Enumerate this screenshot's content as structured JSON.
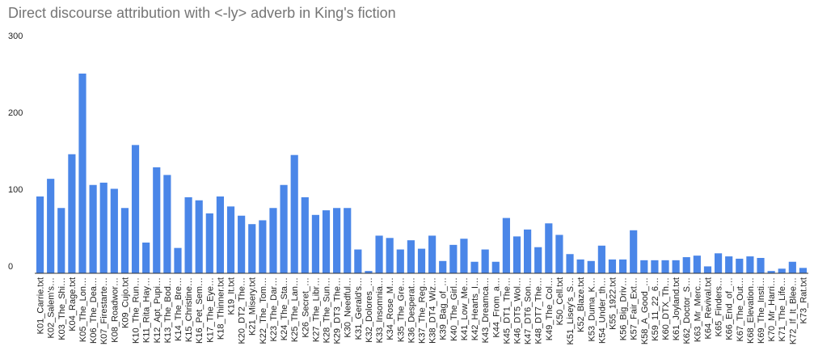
{
  "chart_data": {
    "type": "bar",
    "title": "Direct discourse attribution with <-ly> adverb in King's fiction",
    "categories": [
      "K01_Carrie.txt",
      "K02_Salem's…",
      "K03_The_Shi…",
      "K04_Rage.txt",
      "K05_The_Lon…",
      "K06_The_Dea…",
      "K07_Firestarte…",
      "K08_Roadwor…",
      "K09_Cujo.txt",
      "K10_The_Run…",
      "K11_Rita_Hay…",
      "K12_Apt_Pupi…",
      "K13_The_Bod…",
      "K14_The_Bre…",
      "K15_Christine…",
      "K16_Pet_Sem…",
      "K17_The_Eye…",
      "K18_Thinner.txt",
      "K19_It.txt",
      "K20_DT2_The…",
      "K21_Misery.txt",
      "K22_The_Tom…",
      "K23_The_Dar…",
      "K24_The_Sta…",
      "K25_The_Lan…",
      "K26_Secret_…",
      "K27_The_Libr…",
      "K28_The_Sun…",
      "K29_DT3_The…",
      "K30_Needful…",
      "K31_Gerald's…",
      "K32_Dolores_…",
      "K33_Insomnia…",
      "K34_Rose_M…",
      "K35_The_Gre…",
      "K36_Desperat…",
      "K37_The_Reg…",
      "K38_DT4_Wiz…",
      "K39_Bag_of_…",
      "K40_The_Girl…",
      "K41_Low_Me…",
      "K42_Hearts_I…",
      "K43_Dreamca…",
      "K44_From_a…",
      "K45_DT1_The…",
      "K46_DT5_Wol…",
      "K47_DT6_Son…",
      "K48_DT7_The…",
      "K49_The_Col…",
      "K50_Cell.txt",
      "K51_Lisey's_S…",
      "K52_Blaze.txt",
      "K53_Duma_K…",
      "K54_Under_th…",
      "K55_1922.txt",
      "K56_Big_Driv…",
      "K57_Fair_Ext…",
      "K58_A_Good_…",
      "K59_11_22_6…",
      "K60_DTX_Th…",
      "K61_Joyland.txt",
      "K62_Doctor_S…",
      "K63_Mr_Merc…",
      "K64_Revival.txt",
      "K65_Finders…",
      "K66_End_of_…",
      "K67_The_Out…",
      "K68_Elevation…",
      "K69_The_Insti…",
      "K70_Mr_Harri…",
      "K71_The_Life…",
      "K72_If_It_Blee…",
      "K73_Rat.txt"
    ],
    "values": [
      100,
      123,
      85,
      155,
      260,
      115,
      118,
      110,
      85,
      167,
      40,
      138,
      128,
      33,
      99,
      95,
      78,
      100,
      87,
      75,
      64,
      69,
      85,
      115,
      154,
      99,
      76,
      82,
      85,
      85,
      31,
      3,
      49,
      46,
      31,
      43,
      32,
      49,
      16,
      37,
      45,
      15,
      31,
      15,
      72,
      48,
      57,
      34,
      65,
      50,
      25,
      18,
      16,
      36,
      18,
      18,
      56,
      17,
      17,
      17,
      17,
      21,
      23,
      9,
      26,
      22,
      19,
      22,
      20,
      3,
      6,
      15,
      7
    ],
    "color": "#4a86e8",
    "ylim": [
      0,
      300
    ],
    "yticks": [
      0,
      100,
      200,
      300
    ],
    "grid": false
  }
}
